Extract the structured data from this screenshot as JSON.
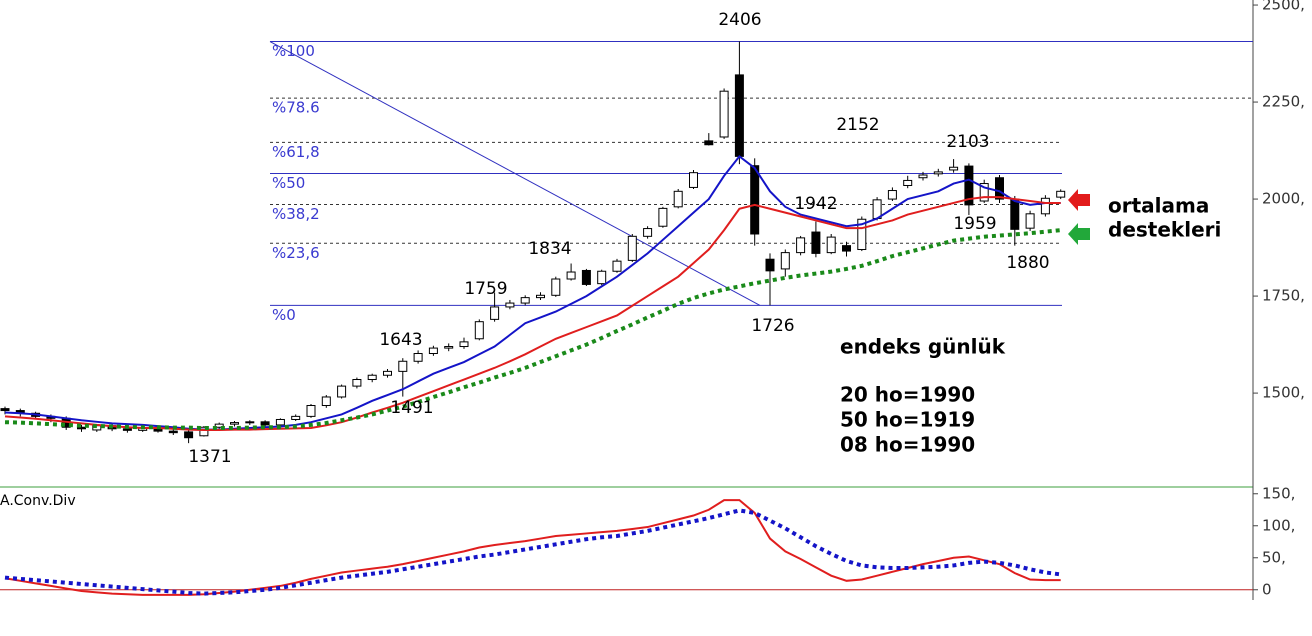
{
  "chart_data": [
    {
      "type": "candlestick",
      "open": [
        1460,
        1455,
        1448,
        1440,
        1435,
        1412,
        1405,
        1416,
        1408,
        1404,
        1410,
        1402,
        1400,
        1390,
        1412,
        1420,
        1424,
        1426,
        1418,
        1432,
        1440,
        1468,
        1490,
        1518,
        1535,
        1546,
        1556,
        1582,
        1602,
        1616,
        1620,
        1640,
        1690,
        1722,
        1732,
        1746,
        1752,
        1794,
        1816,
        1782,
        1814,
        1842,
        1904,
        1930,
        1980,
        2030,
        2150,
        2160,
        2320,
        2086,
        1845,
        1820,
        1862,
        1915,
        1862,
        1880,
        1870,
        1950,
        2000,
        2035,
        2055,
        2065,
        2075,
        2085,
        1995,
        2055,
        2000,
        1925,
        1962,
        2005
      ],
      "high": [
        1465,
        1460,
        1452,
        1445,
        1440,
        1418,
        1420,
        1420,
        1412,
        1415,
        1414,
        1408,
        1405,
        1415,
        1424,
        1428,
        1430,
        1430,
        1435,
        1445,
        1472,
        1495,
        1522,
        1540,
        1550,
        1562,
        1590,
        1610,
        1622,
        1628,
        1643,
        1690,
        1759,
        1740,
        1752,
        1760,
        1800,
        1834,
        1820,
        1818,
        1846,
        1910,
        1930,
        1980,
        2026,
        2075,
        2170,
        2285,
        2406,
        2105,
        1860,
        1870,
        1905,
        1942,
        1910,
        1890,
        1955,
        2005,
        2030,
        2060,
        2070,
        2078,
        2103,
        2092,
        2050,
        2062,
        2008,
        1970,
        2010,
        2025
      ],
      "low": [
        1445,
        1440,
        1432,
        1425,
        1405,
        1400,
        1400,
        1402,
        1398,
        1400,
        1398,
        1392,
        1371,
        1388,
        1408,
        1414,
        1418,
        1410,
        1415,
        1428,
        1436,
        1462,
        1486,
        1512,
        1528,
        1540,
        1491,
        1576,
        1596,
        1608,
        1614,
        1636,
        1684,
        1716,
        1726,
        1740,
        1748,
        1790,
        1776,
        1778,
        1810,
        1838,
        1898,
        1926,
        1976,
        2026,
        2138,
        2155,
        2090,
        1880,
        1726,
        1800,
        1855,
        1850,
        1858,
        1852,
        1866,
        1945,
        1995,
        2028,
        2048,
        2058,
        2068,
        1959,
        1990,
        1990,
        1880,
        1918,
        1955,
        2000
      ],
      "close": [
        1455,
        1448,
        1440,
        1435,
        1412,
        1408,
        1416,
        1408,
        1404,
        1410,
        1402,
        1398,
        1385,
        1412,
        1420,
        1424,
        1426,
        1418,
        1432,
        1440,
        1468,
        1490,
        1518,
        1535,
        1546,
        1556,
        1582,
        1602,
        1616,
        1620,
        1632,
        1684,
        1722,
        1732,
        1746,
        1752,
        1794,
        1812,
        1780,
        1814,
        1840,
        1904,
        1924,
        1976,
        2020,
        2068,
        2140,
        2278,
        2110,
        1910,
        1815,
        1862,
        1900,
        1860,
        1902,
        1866,
        1948,
        1998,
        2022,
        2048,
        2062,
        2070,
        2082,
        1985,
        2040,
        2000,
        1922,
        1962,
        2002,
        2020
      ],
      "series": [
        {
          "color": "#1414c8",
          "style": "solid",
          "values": [
            1450,
            1448,
            1445,
            1440,
            1435,
            1430,
            1426,
            1422,
            1420,
            1418,
            1415,
            1412,
            1408,
            1406,
            1406,
            1408,
            1410,
            1412,
            1414,
            1418,
            1425,
            1435,
            1445,
            1462,
            1480,
            1495,
            1510,
            1530,
            1550,
            1565,
            1580,
            1600,
            1620,
            1650,
            1680,
            1695,
            1710,
            1730,
            1750,
            1775,
            1800,
            1830,
            1860,
            1895,
            1930,
            1965,
            2000,
            2060,
            2110,
            2080,
            2020,
            1980,
            1960,
            1950,
            1940,
            1930,
            1935,
            1950,
            1975,
            2000,
            2010,
            2020,
            2040,
            2050,
            2030,
            2020,
            1995,
            1985,
            1990,
            1990
          ]
        },
        {
          "color": "#e01e1e",
          "style": "solid",
          "values": [
            1440,
            1437,
            1434,
            1430,
            1426,
            1422,
            1418,
            1415,
            1412,
            1410,
            1410,
            1408,
            1406,
            1405,
            1405,
            1406,
            1406,
            1407,
            1408,
            1409,
            1410,
            1417,
            1425,
            1437,
            1450,
            1462,
            1475,
            1490,
            1505,
            1520,
            1535,
            1550,
            1565,
            1582,
            1600,
            1620,
            1640,
            1655,
            1670,
            1685,
            1700,
            1725,
            1750,
            1775,
            1800,
            1835,
            1870,
            1920,
            1975,
            1985,
            1975,
            1965,
            1955,
            1945,
            1935,
            1925,
            1925,
            1935,
            1945,
            1960,
            1970,
            1980,
            1990,
            2000,
            2005,
            2005,
            2000,
            1995,
            1990,
            1990
          ]
        },
        {
          "color": "#1a8a1a",
          "style": "dotted",
          "values": [
            1425,
            1424,
            1422,
            1420,
            1418,
            1416,
            1415,
            1414,
            1413,
            1412,
            1412,
            1411,
            1411,
            1410,
            1410,
            1410,
            1411,
            1412,
            1412,
            1414,
            1418,
            1423,
            1430,
            1437,
            1445,
            1455,
            1465,
            1477,
            1490,
            1502,
            1515,
            1527,
            1540,
            1552,
            1565,
            1580,
            1595,
            1610,
            1625,
            1642,
            1660,
            1677,
            1695,
            1712,
            1730,
            1745,
            1757,
            1767,
            1775,
            1783,
            1790,
            1797,
            1803,
            1808,
            1813,
            1820,
            1828,
            1840,
            1853,
            1863,
            1873,
            1883,
            1893,
            1898,
            1903,
            1906,
            1909,
            1912,
            1916,
            1920
          ]
        }
      ],
      "ylim": [
        1258,
        2513
      ],
      "yticks": [
        {
          "value": 2500,
          "label": "2500,"
        },
        {
          "value": 2250,
          "label": "2250,"
        },
        {
          "value": 2000,
          "label": "2000,"
        },
        {
          "value": 1750,
          "label": "1750,"
        },
        {
          "value": 1500,
          "label": "1500,"
        }
      ],
      "fibonacci": [
        {
          "label": "%100",
          "value": 2406,
          "line": "solid"
        },
        {
          "label": "%78.6",
          "value": 2260,
          "line": "dotted"
        },
        {
          "label": "%61,8",
          "value": 2146,
          "line": "dotted"
        },
        {
          "label": "%50",
          "value": 2066,
          "line": "solid"
        },
        {
          "label": "%38,2",
          "value": 1986,
          "line": "dotted"
        },
        {
          "label": "%23,6",
          "value": 1886,
          "line": "dotted"
        },
        {
          "label": "%0",
          "value": 1726,
          "line": "solid"
        }
      ],
      "annotations": [
        "2406",
        "2152",
        "2103",
        "1942",
        "1959",
        "1880",
        "1834",
        "1759",
        "1643",
        "1491",
        "1371",
        "1726"
      ],
      "side_label": [
        "ortalama",
        "destekleri"
      ],
      "info": [
        "endeks günlük",
        "20 ho=1990",
        "50 ho=1919",
        "08 ho=1990"
      ]
    },
    {
      "type": "line",
      "title": "A.Conv.Div",
      "series": [
        {
          "color": "#e01e1e",
          "style": "solid",
          "values": [
            18,
            14,
            10,
            6,
            2,
            -2,
            -4,
            -6,
            -7,
            -8,
            -8,
            -8,
            -8,
            -7,
            -5,
            -3,
            0,
            3,
            6,
            11,
            17,
            22,
            27,
            30,
            33,
            36,
            40,
            45,
            50,
            55,
            60,
            66,
            70,
            73,
            76,
            80,
            84,
            86,
            88,
            90,
            92,
            95,
            98,
            104,
            110,
            116,
            125,
            140,
            140,
            120,
            80,
            60,
            48,
            35,
            22,
            14,
            16,
            22,
            28,
            34,
            40,
            45,
            50,
            52,
            46,
            40,
            26,
            16,
            15,
            15
          ]
        },
        {
          "color": "#1414c8",
          "style": "dotted",
          "values": [
            19,
            17,
            15,
            13,
            11,
            9,
            7,
            5,
            3,
            1,
            -1,
            -3,
            -5,
            -6,
            -5,
            -4,
            -2,
            0,
            3,
            7,
            11,
            15,
            19,
            22,
            25,
            28,
            32,
            36,
            40,
            44,
            48,
            52,
            55,
            59,
            63,
            67,
            71,
            75,
            79,
            82,
            84,
            88,
            92,
            97,
            102,
            107,
            112,
            118,
            124,
            120,
            108,
            96,
            82,
            68,
            56,
            45,
            38,
            35,
            34,
            34,
            35,
            36,
            38,
            42,
            44,
            42,
            38,
            32,
            27,
            24
          ]
        }
      ],
      "ylim": [
        -16,
        159
      ],
      "yticks": [
        {
          "value": 150,
          "label": "150,"
        },
        {
          "value": 100,
          "label": "100,"
        },
        {
          "value": 50,
          "label": "50,"
        },
        0
      ]
    }
  ]
}
